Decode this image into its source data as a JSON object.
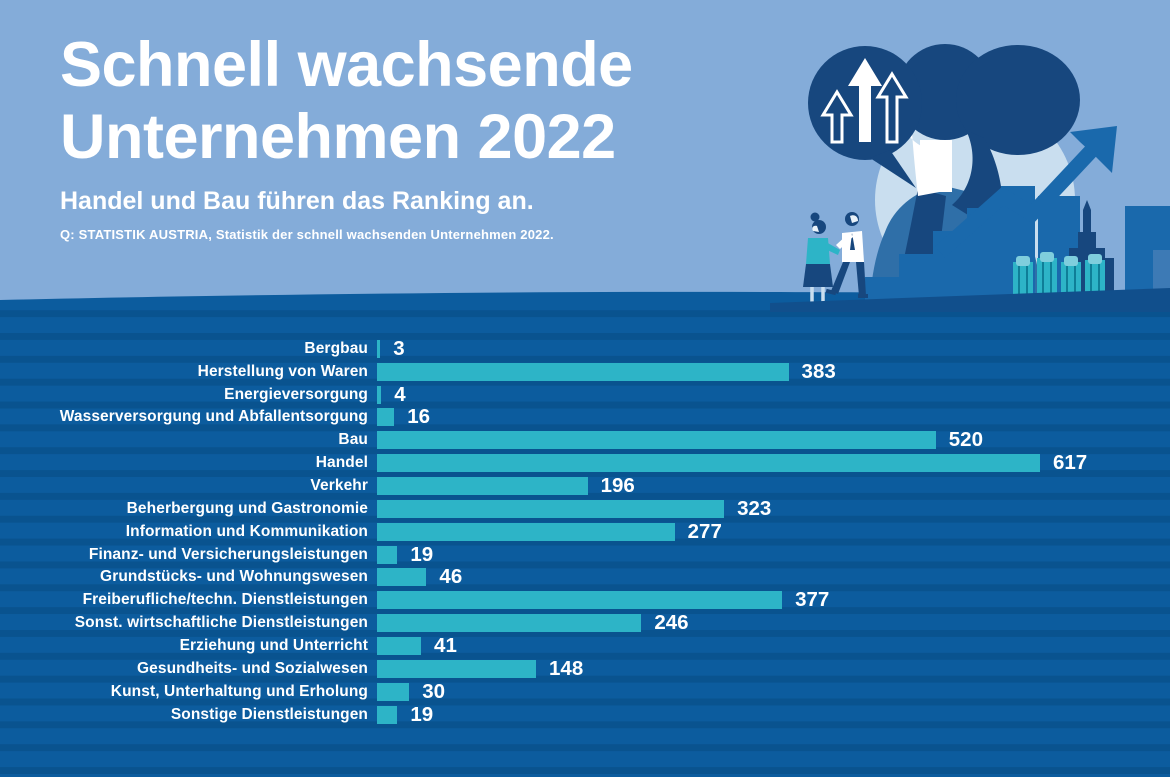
{
  "header": {
    "title": "Schnell wachsende\nUnternehmen 2022",
    "subtitle": "Handel und Bau führen das Ranking an.",
    "source": "Q: STATISTIK AUSTRIA, Statistik der schnell wachsenden Unternehmen 2022."
  },
  "colors": {
    "header_bg": "#84ACD9",
    "chart_bg": "#0C5C9E",
    "stripe": "#09538F",
    "bar": "#2DB4C7",
    "navy": "#17477E",
    "medium_blue": "#1A69AC",
    "pale_circle": "#C9DEEF",
    "cyan_light": "#7FCEDD",
    "text": "#FFFFFF"
  },
  "illustration": {
    "elements": [
      "speech-bubble-icon",
      "growth-arrows-icon",
      "woman-illustration",
      "stairs-illustration",
      "trend-arrow-icon",
      "buildings-illustration",
      "people-illustration"
    ]
  },
  "chart_data": {
    "type": "bar",
    "orientation": "horizontal",
    "title": "Schnell wachsende Unternehmen 2022",
    "subtitle": "Handel und Bau führen das Ranking an.",
    "source": "Q: STATISTIK AUSTRIA, Statistik der schnell wachsenden Unternehmen 2022.",
    "xlabel": "",
    "ylabel": "",
    "xlim": [
      0,
      660
    ],
    "grid": false,
    "legend": false,
    "value_labels": true,
    "categories": [
      "Bergbau",
      "Herstellung von Waren",
      "Energieversorgung",
      "Wasserversorgung und Abfallentsorgung",
      "Bau",
      "Handel",
      "Verkehr",
      "Beherbergung und Gastronomie",
      "Information und Kommunikation",
      "Finanz- und Versicherungsleistungen",
      "Grundstücks- und Wohnungswesen",
      "Freiberufliche/techn. Dienstleistungen",
      "Sonst. wirtschaftliche Dienstleistungen",
      "Erziehung und Unterricht",
      "Gesundheits- und Sozialwesen",
      "Kunst, Unterhaltung und Erholung",
      "Sonstige Dienstleistungen"
    ],
    "values": [
      3,
      383,
      4,
      16,
      520,
      617,
      196,
      323,
      277,
      19,
      46,
      377,
      246,
      41,
      148,
      30,
      19
    ]
  }
}
